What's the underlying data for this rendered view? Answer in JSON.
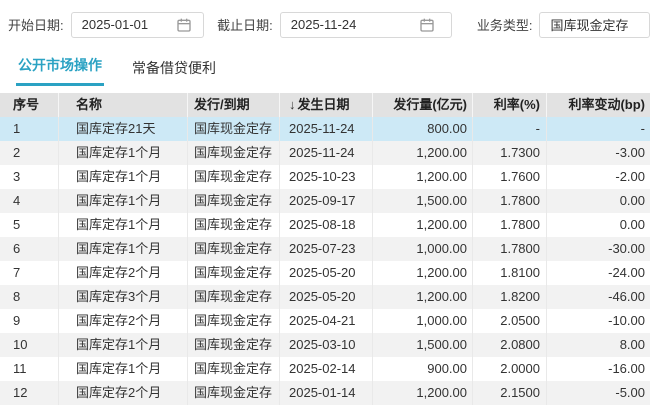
{
  "filters": {
    "start_date": {
      "label": "开始日期:",
      "value": "2025-01-01"
    },
    "end_date": {
      "label": "截止日期:",
      "value": "2025-11-24"
    },
    "business_type": {
      "label": "业务类型:",
      "value": "国库现金定存"
    }
  },
  "tabs": [
    {
      "label": "公开市场操作",
      "active": true
    },
    {
      "label": "常备借贷便利",
      "active": false
    }
  ],
  "colors": {
    "accent": "#2aa2c3",
    "selected_row": "#cde9f6",
    "stripe_row": "#f2f2f2",
    "header_bg": "#e2e2e2"
  },
  "table": {
    "sort_icon": "↓",
    "columns": [
      {
        "label": "序号",
        "align": "left"
      },
      {
        "label": "名称",
        "align": "left"
      },
      {
        "label": "发行/到期",
        "align": "left"
      },
      {
        "label": "发生日期",
        "align": "left",
        "sort": "desc"
      },
      {
        "label": "发行量(亿元)",
        "align": "right"
      },
      {
        "label": "利率(%)",
        "align": "right"
      },
      {
        "label": "利率变动(bp)",
        "align": "right"
      }
    ],
    "selected_row_index": 0,
    "rows": [
      [
        "1",
        "国库定存21天",
        "国库现金定存",
        "2025-11-24",
        "800.00",
        "-",
        "-"
      ],
      [
        "2",
        "国库定存1个月",
        "国库现金定存",
        "2025-11-24",
        "1,200.00",
        "1.7300",
        "-3.00"
      ],
      [
        "3",
        "国库定存1个月",
        "国库现金定存",
        "2025-10-23",
        "1,200.00",
        "1.7600",
        "-2.00"
      ],
      [
        "4",
        "国库定存1个月",
        "国库现金定存",
        "2025-09-17",
        "1,500.00",
        "1.7800",
        "0.00"
      ],
      [
        "5",
        "国库定存1个月",
        "国库现金定存",
        "2025-08-18",
        "1,200.00",
        "1.7800",
        "0.00"
      ],
      [
        "6",
        "国库定存1个月",
        "国库现金定存",
        "2025-07-23",
        "1,000.00",
        "1.7800",
        "-30.00"
      ],
      [
        "7",
        "国库定存2个月",
        "国库现金定存",
        "2025-05-20",
        "1,200.00",
        "1.8100",
        "-24.00"
      ],
      [
        "8",
        "国库定存3个月",
        "国库现金定存",
        "2025-05-20",
        "1,200.00",
        "1.8200",
        "-46.00"
      ],
      [
        "9",
        "国库定存2个月",
        "国库现金定存",
        "2025-04-21",
        "1,000.00",
        "2.0500",
        "-10.00"
      ],
      [
        "10",
        "国库定存1个月",
        "国库现金定存",
        "2025-03-10",
        "1,500.00",
        "2.0800",
        "8.00"
      ],
      [
        "11",
        "国库定存1个月",
        "国库现金定存",
        "2025-02-14",
        "900.00",
        "2.0000",
        "-16.00"
      ],
      [
        "12",
        "国库定存2个月",
        "国库现金定存",
        "2025-01-14",
        "1,200.00",
        "2.1500",
        "-5.00"
      ]
    ]
  }
}
